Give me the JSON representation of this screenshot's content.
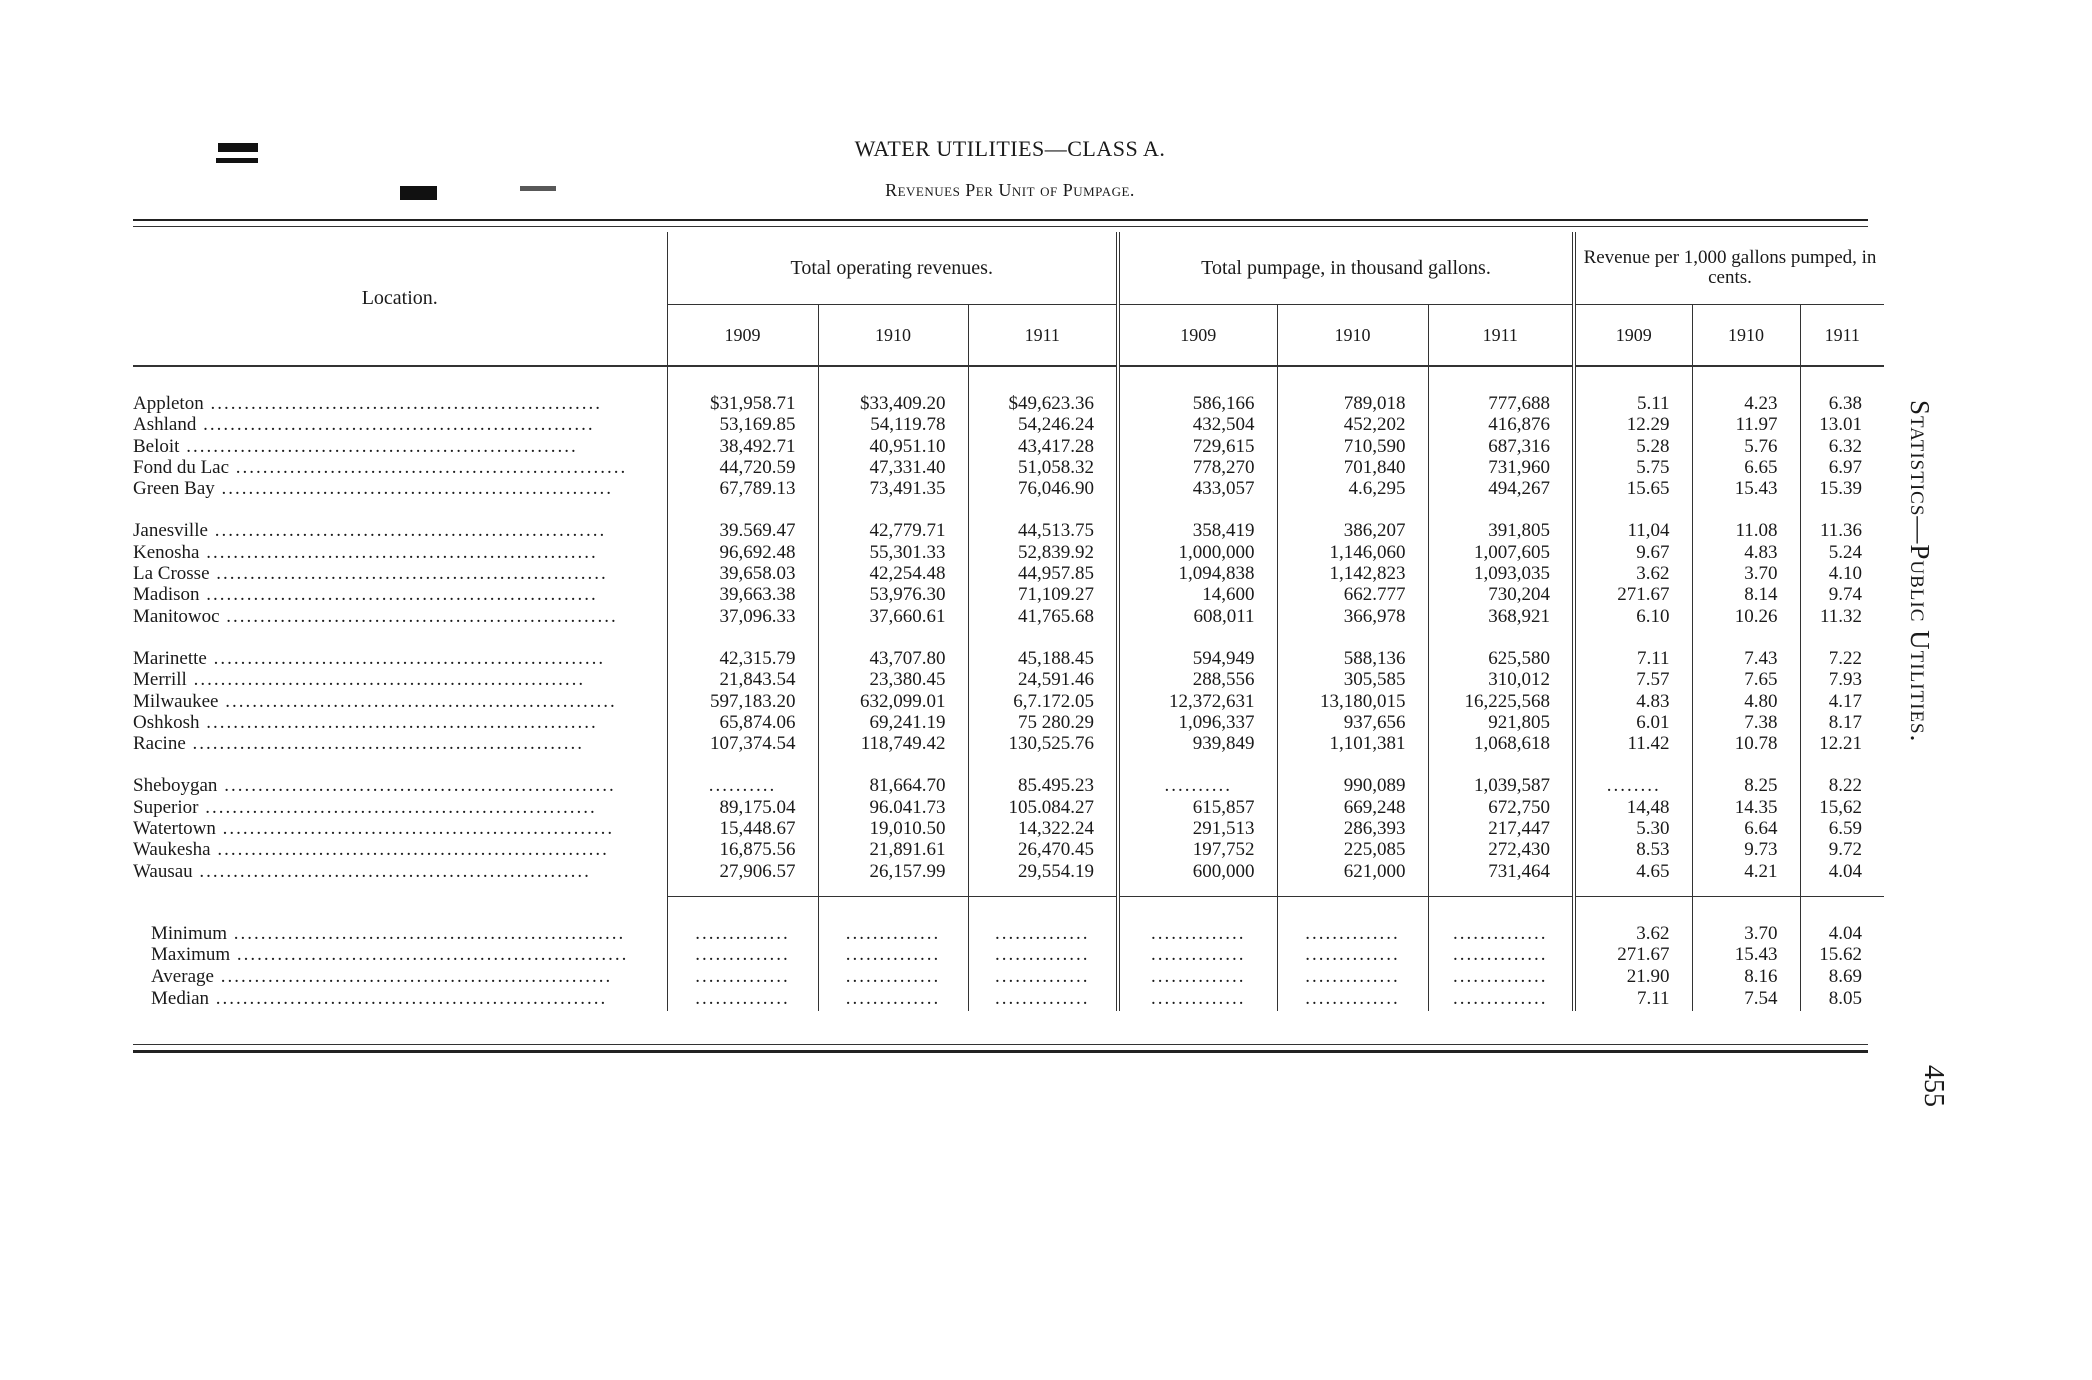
{
  "page": {
    "title": "WATER UTILITIES—CLASS A.",
    "subtitle": "Revenues Per Unit of Pumpage.",
    "side_heading": "Statistics—Public Utilities.",
    "page_number": "455"
  },
  "table": {
    "headers": {
      "location": "Location.",
      "revenues": "Total operating revenues.",
      "pumpage": "Total pumpage, in thousand gallons.",
      "rate": "Revenue per 1,000 gallons pumped, in cents.",
      "years": [
        "1909",
        "1910",
        "1911"
      ]
    },
    "groups": [
      [
        {
          "location": "Appleton",
          "rev": [
            "$31,958.71",
            "$33,409.20",
            "$49,623.36"
          ],
          "pump": [
            "586,166",
            "789,018",
            "777,688"
          ],
          "rate": [
            "5.11",
            "4.23",
            "6.38"
          ]
        },
        {
          "location": "Ashland",
          "rev": [
            "53,169.85",
            "54,119.78",
            "54,246.24"
          ],
          "pump": [
            "432,504",
            "452,202",
            "416,876"
          ],
          "rate": [
            "12.29",
            "11.97",
            "13.01"
          ]
        },
        {
          "location": "Beloit",
          "rev": [
            "38,492.71",
            "40,951.10",
            "43,417.28"
          ],
          "pump": [
            "729,615",
            "710,590",
            "687,316"
          ],
          "rate": [
            "5.28",
            "5.76",
            "6.32"
          ]
        },
        {
          "location": "Fond du Lac",
          "rev": [
            "44,720.59",
            "47,331.40",
            "51,058.32"
          ],
          "pump": [
            "778,270",
            "701,840",
            "731,960"
          ],
          "rate": [
            "5.75",
            "6.65",
            "6.97"
          ]
        },
        {
          "location": "Green Bay",
          "rev": [
            "67,789.13",
            "73,491.35",
            "76,046.90"
          ],
          "pump": [
            "433,057",
            "4.6,295",
            "494,267"
          ],
          "rate": [
            "15.65",
            "15.43",
            "15.39"
          ]
        }
      ],
      [
        {
          "location": "Janesville",
          "rev": [
            "39.569.47",
            "42,779.71",
            "44,513.75"
          ],
          "pump": [
            "358,419",
            "386,207",
            "391,805"
          ],
          "rate": [
            "11,04",
            "11.08",
            "11.36"
          ]
        },
        {
          "location": "Kenosha",
          "rev": [
            "96,692.48",
            "55,301.33",
            "52,839.92"
          ],
          "pump": [
            "1,000,000",
            "1,146,060",
            "1,007,605"
          ],
          "rate": [
            "9.67",
            "4.83",
            "5.24"
          ]
        },
        {
          "location": "La Crosse",
          "rev": [
            "39,658.03",
            "42,254.48",
            "44,957.85"
          ],
          "pump": [
            "1,094,838",
            "1,142,823",
            "1,093,035"
          ],
          "rate": [
            "3.62",
            "3.70",
            "4.10"
          ]
        },
        {
          "location": "Madison",
          "rev": [
            "39,663.38",
            "53,976.30",
            "71,109.27"
          ],
          "pump": [
            "14,600",
            "662.777",
            "730,204"
          ],
          "rate": [
            "271.67",
            "8.14",
            "9.74"
          ]
        },
        {
          "location": "Manitowoc",
          "rev": [
            "37,096.33",
            "37,660.61",
            "41,765.68"
          ],
          "pump": [
            "608,011",
            "366,978",
            "368,921"
          ],
          "rate": [
            "6.10",
            "10.26",
            "11.32"
          ]
        }
      ],
      [
        {
          "location": "Marinette",
          "rev": [
            "42,315.79",
            "43,707.80",
            "45,188.45"
          ],
          "pump": [
            "594,949",
            "588,136",
            "625,580"
          ],
          "rate": [
            "7.11",
            "7.43",
            "7.22"
          ]
        },
        {
          "location": "Merrill",
          "rev": [
            "21,843.54",
            "23,380.45",
            "24,591.46"
          ],
          "pump": [
            "288,556",
            "305,585",
            "310,012"
          ],
          "rate": [
            "7.57",
            "7.65",
            "7.93"
          ]
        },
        {
          "location": "Milwaukee",
          "rev": [
            "597,183.20",
            "632,099.01",
            "6,7.172.05"
          ],
          "pump": [
            "12,372,631",
            "13,180,015",
            "16,225,568"
          ],
          "rate": [
            "4.83",
            "4.80",
            "4.17"
          ]
        },
        {
          "location": "Oshkosh",
          "rev": [
            "65,874.06",
            "69,241.19",
            "75 280.29"
          ],
          "pump": [
            "1,096,337",
            "937,656",
            "921,805"
          ],
          "rate": [
            "6.01",
            "7.38",
            "8.17"
          ]
        },
        {
          "location": "Racine",
          "rev": [
            "107,374.54",
            "118,749.42",
            "130,525.76"
          ],
          "pump": [
            "939,849",
            "1,101,381",
            "1,068,618"
          ],
          "rate": [
            "11.42",
            "10.78",
            "12.21"
          ]
        }
      ],
      [
        {
          "location": "Sheboygan",
          "rev": [
            "..........",
            "81,664.70",
            "85.495.23"
          ],
          "pump": [
            "..........",
            "990,089",
            "1,039,587"
          ],
          "rate": [
            "........",
            "8.25",
            "8.22"
          ]
        },
        {
          "location": "Superior",
          "rev": [
            "89,175.04",
            "96.041.73",
            "105.084.27"
          ],
          "pump": [
            "615,857",
            "669,248",
            "672,750"
          ],
          "rate": [
            "14,48",
            "14.35",
            "15,62"
          ]
        },
        {
          "location": "Watertown",
          "rev": [
            "15,448.67",
            "19,010.50",
            "14,322.24"
          ],
          "pump": [
            "291,513",
            "286,393",
            "217,447"
          ],
          "rate": [
            "5.30",
            "6.64",
            "6.59"
          ]
        },
        {
          "location": "Waukesha",
          "rev": [
            "16,875.56",
            "21,891.61",
            "26,470.45"
          ],
          "pump": [
            "197,752",
            "225,085",
            "272,430"
          ],
          "rate": [
            "8.53",
            "9.73",
            "9.72"
          ]
        },
        {
          "location": "Wausau",
          "rev": [
            "27,906.57",
            "26,157.99",
            "29,554.19"
          ],
          "pump": [
            "600,000",
            "621,000",
            "731,464"
          ],
          "rate": [
            "4.65",
            "4.21",
            "4.04"
          ]
        }
      ]
    ],
    "summary": [
      {
        "label": "Minimum",
        "rate": [
          "3.62",
          "3.70",
          "4.04"
        ]
      },
      {
        "label": "Maximum",
        "rate": [
          "271.67",
          "15.43",
          "15.62"
        ]
      },
      {
        "label": "Average",
        "rate": [
          "21.90",
          "8.16",
          "8.69"
        ]
      },
      {
        "label": "Median",
        "rate": [
          "7.11",
          "7.54",
          "8.05"
        ]
      }
    ]
  }
}
